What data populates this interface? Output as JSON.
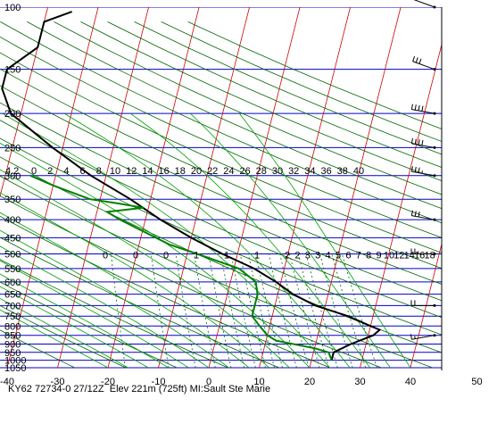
{
  "colors": {
    "isobar": "#0000cc",
    "isotherm": "#cc0000",
    "dry_adiabat": "#006600",
    "moist_adiabat": "#00a000",
    "mixing_ratio": "#006600",
    "temperature": "#000000",
    "dewpoint": "#008000",
    "wind_barb": "#000000"
  },
  "footer": {
    "text": "KY62 72734-0 27/12Z  Elev 221m (725ft) MI:Sault Ste Marie"
  },
  "chart_data": {
    "type": "skew-t",
    "title": "",
    "pressure_levels": [
      100,
      150,
      200,
      250,
      300,
      350,
      400,
      450,
      500,
      550,
      600,
      650,
      700,
      750,
      800,
      850,
      900,
      950,
      1000,
      1050
    ],
    "pressure_labels": [
      "100",
      "150",
      "200",
      "250",
      "300",
      "350",
      "400",
      "450",
      "500",
      "550",
      "600",
      "650",
      "700",
      "750",
      "800",
      "850",
      "900",
      "950",
      "1000",
      "1050"
    ],
    "temperature_axis_labels": [
      "-40",
      "-30",
      "-20",
      "-10",
      "0",
      "10",
      "20",
      "30",
      "40",
      "50"
    ],
    "temperature_axis_values": [
      -40,
      -30,
      -20,
      -10,
      0,
      10,
      20,
      30,
      40,
      50
    ],
    "xlim": [
      -40,
      50
    ],
    "ylim_hpa": [
      1050,
      100
    ],
    "y_scale": "log",
    "mixing_ratio_row_300": [
      "0",
      "2",
      "4",
      "6",
      "8",
      "10",
      "12",
      "14",
      "16",
      "18",
      "20",
      "22",
      "24",
      "26",
      "28",
      "30",
      "32",
      "34",
      "36",
      "38",
      "40"
    ],
    "mixing_ratio_row_300_prefix": "4.2",
    "mixing_ratio_row_500": [
      "0",
      "0",
      "0",
      "1",
      "1",
      "1",
      "2",
      "2",
      "3",
      "3",
      "4",
      "5",
      "6",
      "7",
      "8",
      "9",
      "10",
      "12",
      "14",
      "16",
      "18",
      "20",
      "24",
      "28",
      "32",
      "32"
    ],
    "temperature_profile": [
      {
        "p": 1000,
        "t": 24
      },
      {
        "p": 950,
        "t": 24
      },
      {
        "p": 900,
        "t": 27
      },
      {
        "p": 850,
        "t": 31
      },
      {
        "p": 820,
        "t": 32
      },
      {
        "p": 800,
        "t": 30
      },
      {
        "p": 750,
        "t": 25
      },
      {
        "p": 700,
        "t": 18
      },
      {
        "p": 650,
        "t": 13
      },
      {
        "p": 600,
        "t": 9
      },
      {
        "p": 550,
        "t": 4
      },
      {
        "p": 500,
        "t": -3
      },
      {
        "p": 450,
        "t": -10
      },
      {
        "p": 400,
        "t": -17
      },
      {
        "p": 350,
        "t": -24
      },
      {
        "p": 300,
        "t": -33
      },
      {
        "p": 250,
        "t": -42
      },
      {
        "p": 200,
        "t": -52
      },
      {
        "p": 170,
        "t": -55
      },
      {
        "p": 150,
        "t": -55
      },
      {
        "p": 130,
        "t": -50
      },
      {
        "p": 110,
        "t": -50
      },
      {
        "p": 103,
        "t": -45
      }
    ],
    "dewpoint_profile": [
      {
        "p": 1000,
        "t": 24
      },
      {
        "p": 950,
        "t": 23
      },
      {
        "p": 925,
        "t": 20
      },
      {
        "p": 880,
        "t": 12
      },
      {
        "p": 850,
        "t": 10
      },
      {
        "p": 800,
        "t": 8
      },
      {
        "p": 750,
        "t": 6
      },
      {
        "p": 700,
        "t": 6
      },
      {
        "p": 650,
        "t": 6
      },
      {
        "p": 600,
        "t": 5
      },
      {
        "p": 550,
        "t": 1
      },
      {
        "p": 500,
        "t": -8
      },
      {
        "p": 470,
        "t": -14
      },
      {
        "p": 450,
        "t": -17
      },
      {
        "p": 400,
        "t": -25
      },
      {
        "p": 380,
        "t": -28
      },
      {
        "p": 370,
        "t": -21
      },
      {
        "p": 360,
        "t": -26
      },
      {
        "p": 350,
        "t": -32
      },
      {
        "p": 320,
        "t": -40
      },
      {
        "p": 300,
        "t": -45
      }
    ],
    "wind_barbs": [
      {
        "p": 100,
        "dir": 290,
        "spd": 15
      },
      {
        "p": 150,
        "dir": 290,
        "spd": 30
      },
      {
        "p": 200,
        "dir": 280,
        "spd": 40
      },
      {
        "p": 250,
        "dir": 280,
        "spd": 40
      },
      {
        "p": 300,
        "dir": 280,
        "spd": 35
      },
      {
        "p": 400,
        "dir": 280,
        "spd": 30
      },
      {
        "p": 500,
        "dir": 270,
        "spd": 25
      },
      {
        "p": 700,
        "dir": 270,
        "spd": 20
      },
      {
        "p": 850,
        "dir": 260,
        "spd": 15
      }
    ]
  }
}
